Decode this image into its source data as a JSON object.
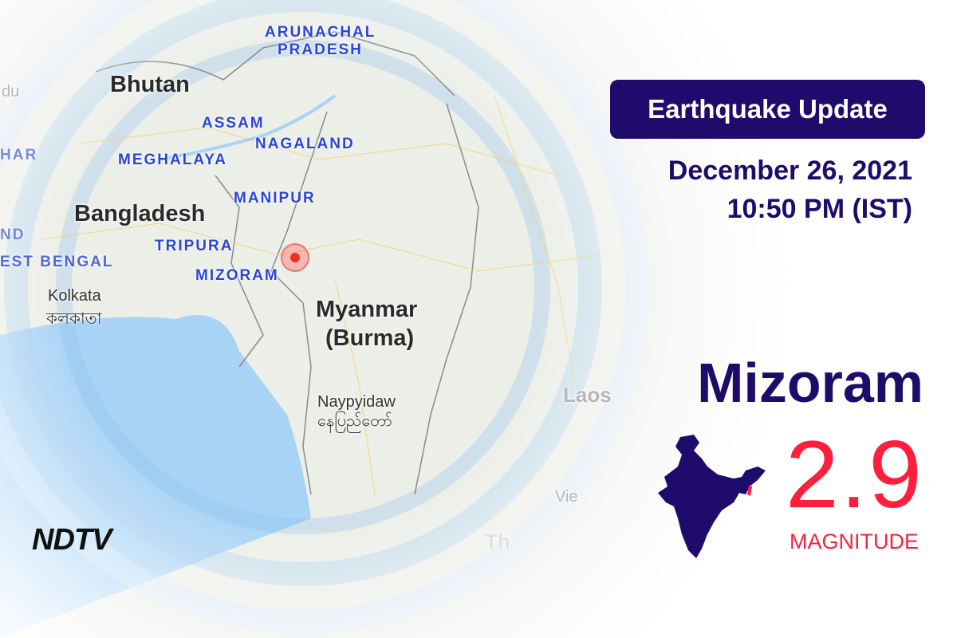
{
  "map": {
    "labels": {
      "arunachal": "ARUNACHAL",
      "pradesh": "PRADESH",
      "bhutan": "Bhutan",
      "du": "du",
      "assam": "ASSAM",
      "nagaland": "NAGALAND",
      "har": "HAR",
      "meghalaya": "MEGHALAYA",
      "manipur": "MANIPUR",
      "bangladesh": "Bangladesh",
      "nd": "ND",
      "tripura": "TRIPURA",
      "west_bengal": "EST BENGAL",
      "mizoram": "MIZORAM",
      "kolkata": "Kolkata",
      "kolkata_bn": "কলকাতা",
      "myanmar": "Myanmar",
      "burma": "(Burma)",
      "naypyidaw": "Naypyidaw",
      "naypyidaw_my": "နေပြည်တော်",
      "laos": "Laos",
      "vie": "Vie",
      "th": "Th"
    },
    "epicenter_marker": "red-pulse-dot"
  },
  "header": {
    "badge": "Earthquake Update",
    "date": "December 26, 2021",
    "time": "10:50 PM (IST)"
  },
  "quake": {
    "location": "Mizoram",
    "magnitude": "2.9",
    "magnitude_label": "MAGNITUDE"
  },
  "logo": "NDTV",
  "colors": {
    "navy": "#1e0b6b",
    "red": "#ff1f3d",
    "water": "#a9d3f5",
    "state_label": "#2a45d8"
  }
}
